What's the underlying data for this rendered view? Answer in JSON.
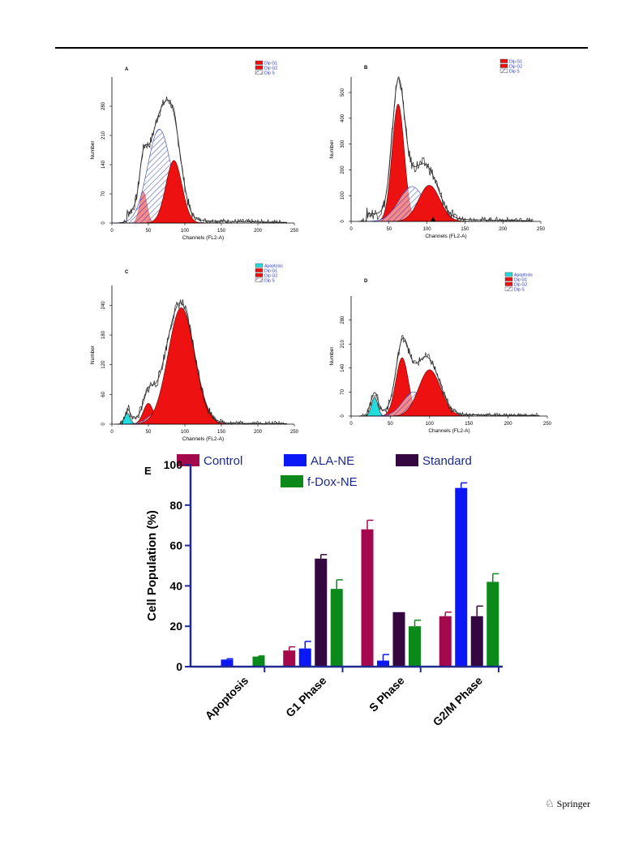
{
  "footer": {
    "publisher": "Springer",
    "logo_icon": "springer-horse-icon"
  },
  "chart_data": [
    {
      "type": "histogram",
      "panel": "A",
      "xlabel": "Channels (FL2-A)",
      "ylabel": "Number",
      "xlim": [
        0,
        250
      ],
      "ylim": [
        0,
        350
      ],
      "x_ticks": [
        0,
        50,
        100,
        150,
        200,
        250
      ],
      "y_ticks": [
        0,
        70,
        140,
        210,
        280
      ],
      "legend": [
        {
          "label": "Dip G1",
          "fill": "red"
        },
        {
          "label": "Dip G2",
          "fill": "red"
        },
        {
          "label": "Dip S",
          "fill": "hatch"
        }
      ],
      "components": [
        {
          "name": "Dip G1",
          "fill": "red",
          "center": 43,
          "width": 5,
          "height": 75
        },
        {
          "name": "Dip S",
          "fill": "hatch",
          "center": 65,
          "width": 16,
          "height": 225
        },
        {
          "name": "Dip G2",
          "fill": "red",
          "center": 85,
          "width": 11,
          "height": 150
        }
      ],
      "tail": 12,
      "noise": 16
    },
    {
      "type": "histogram",
      "panel": "B",
      "xlabel": "Channels (FL2-A)",
      "ylabel": "Number",
      "xlim": [
        0,
        250
      ],
      "ylim": [
        0,
        560
      ],
      "x_ticks": [
        0,
        50,
        100,
        150,
        200,
        250
      ],
      "y_ticks": [
        0,
        100,
        200,
        300,
        400,
        500
      ],
      "legend": [
        {
          "label": "Dip G1",
          "fill": "red"
        },
        {
          "label": "Dip G2",
          "fill": "red"
        },
        {
          "label": "Dip S",
          "fill": "hatch"
        }
      ],
      "components": [
        {
          "name": "Dip G1",
          "fill": "red",
          "center": 62,
          "width": 8,
          "height": 455
        },
        {
          "name": "Dip S",
          "fill": "hatch",
          "center": 80,
          "width": 17,
          "height": 135
        },
        {
          "name": "Dip G2",
          "fill": "red",
          "center": 103,
          "width": 14,
          "height": 140
        }
      ],
      "tail": 20,
      "noise": 30,
      "marker_x": 108
    },
    {
      "type": "histogram",
      "panel": "C",
      "xlabel": "Channels (FL2-A)",
      "ylabel": "Number",
      "xlim": [
        0,
        250
      ],
      "ylim": [
        0,
        280
      ],
      "x_ticks": [
        0,
        50,
        100,
        150,
        200,
        250
      ],
      "y_ticks": [
        0,
        60,
        120,
        180,
        240
      ],
      "legend": [
        {
          "label": "Apoptosis",
          "fill": "cyan"
        },
        {
          "label": "Dip G1",
          "fill": "red"
        },
        {
          "label": "Dip G2",
          "fill": "red"
        },
        {
          "label": "Dip S",
          "fill": "hatch"
        }
      ],
      "components": [
        {
          "name": "Apoptosis",
          "fill": "cyan",
          "center": 21,
          "width": 4,
          "height": 22
        },
        {
          "name": "Dip G1",
          "fill": "red",
          "center": 50,
          "width": 7,
          "height": 42
        },
        {
          "name": "Dip S",
          "fill": "hatch",
          "center": 68,
          "width": 15,
          "height": 30
        },
        {
          "name": "Dip G2",
          "fill": "red",
          "center": 95,
          "width": 18,
          "height": 235
        }
      ],
      "tail": 6,
      "noise": 14
    },
    {
      "type": "histogram",
      "panel": "D",
      "xlabel": "Channels (FL2-A)",
      "ylabel": "Number",
      "xlim": [
        0,
        250
      ],
      "ylim": [
        0,
        350
      ],
      "x_ticks": [
        0,
        50,
        100,
        150,
        200,
        250
      ],
      "y_ticks": [
        0,
        70,
        140,
        210,
        280
      ],
      "legend": [
        {
          "label": "Apoptosis",
          "fill": "cyan"
        },
        {
          "label": "Dip G1",
          "fill": "red"
        },
        {
          "label": "Dip G2",
          "fill": "red"
        },
        {
          "label": "Dip S",
          "fill": "hatch"
        }
      ],
      "components": [
        {
          "name": "Apoptosis",
          "fill": "cyan",
          "center": 30,
          "width": 4,
          "height": 55
        },
        {
          "name": "Dip G1",
          "fill": "red",
          "center": 65,
          "width": 8,
          "height": 170
        },
        {
          "name": "Dip S",
          "fill": "hatch",
          "center": 80,
          "width": 14,
          "height": 70
        },
        {
          "name": "Dip G2",
          "fill": "red",
          "center": 100,
          "width": 14,
          "height": 135
        }
      ],
      "tail": 10,
      "noise": 16
    },
    {
      "type": "bar",
      "panel": "E",
      "ylabel": "Cell Population (%)",
      "ylim": [
        0,
        100
      ],
      "y_ticks": [
        0,
        20,
        40,
        60,
        80,
        100
      ],
      "categories": [
        "Apoptosis",
        "G1 Phase",
        "S Phase",
        "G2/M Phase"
      ],
      "series": [
        {
          "name": "Control",
          "color": "#a5094d",
          "values": [
            null,
            8,
            68,
            25
          ],
          "errors": [
            null,
            1.8,
            4.5,
            2
          ]
        },
        {
          "name": "ALA-NE",
          "color": "#0b17f5",
          "values": [
            3.5,
            9,
            3,
            88.5
          ],
          "errors": [
            0.4,
            3.5,
            3,
            2.5
          ]
        },
        {
          "name": "Standard",
          "color": "#350741",
          "values": [
            null,
            53.5,
            27,
            25
          ],
          "errors": [
            null,
            2,
            0,
            5
          ]
        },
        {
          "name": "f-Dox-NE",
          "color": "#0b891b",
          "values": [
            5,
            38.5,
            20,
            42
          ],
          "errors": [
            0.3,
            4.5,
            3,
            4
          ]
        }
      ],
      "axis_color": "#202a8f"
    }
  ]
}
